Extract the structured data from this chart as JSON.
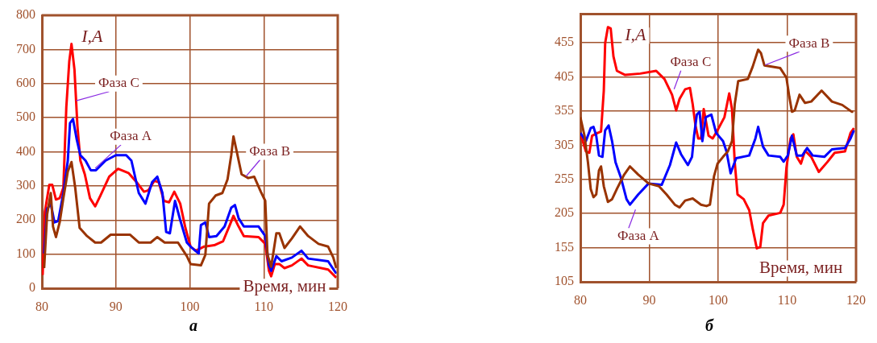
{
  "chart_data": [
    {
      "type": "line",
      "ylabel": "I,A",
      "xlabel": "Время, мин",
      "annotations": [
        "а"
      ],
      "xlim": [
        80,
        120
      ],
      "xticks": [
        80,
        90,
        100,
        110,
        120
      ],
      "ylim": [
        0,
        800
      ],
      "yticks": [
        0,
        100,
        200,
        300,
        400,
        500,
        600,
        700,
        800
      ],
      "grid": true,
      "marker": "none",
      "line_style": "solid",
      "series": [
        {
          "name": "Фаза B",
          "color": "#993300",
          "x": [
            80.3,
            80.7,
            81.2,
            81.5,
            81.9,
            82.4,
            82.9,
            83.5,
            84.0,
            84.5,
            85.1,
            86.1,
            87.2,
            88.0,
            89.3,
            91.9,
            93.1,
            94.7,
            95.6,
            96.6,
            98.4,
            99.6,
            100.1,
            101.5,
            102.1,
            102.6,
            103.5,
            104.4,
            105.1,
            105.6,
            105.9,
            106.3,
            107.0,
            107.9,
            108.7,
            109.6,
            110.2,
            110.5,
            111.0,
            111.7,
            112.1,
            112.8,
            113.8,
            114.9,
            116.0,
            117.4,
            118.7,
            119.4,
            119.8
          ],
          "values": [
            59,
            216,
            279,
            181,
            150,
            193,
            264,
            342,
            370,
            295,
            177,
            153,
            134,
            134,
            157,
            157,
            134,
            134,
            150,
            134,
            134,
            94,
            71,
            67,
            98,
            248,
            272,
            279,
            319,
            390,
            445,
            405,
            334,
            323,
            327,
            283,
            256,
            98,
            63,
            161,
            161,
            118,
            146,
            181,
            153,
            130,
            122,
            90,
            59
          ]
        },
        {
          "name": "Фаза A",
          "color": "#0000ff",
          "x": [
            80.3,
            80.7,
            81.2,
            81.7,
            82.2,
            82.9,
            83.5,
            83.8,
            84.2,
            84.7,
            85.2,
            85.9,
            86.6,
            87.3,
            88.6,
            90.0,
            91.4,
            92.1,
            93.1,
            94.0,
            94.9,
            95.6,
            96.3,
            96.8,
            97.3,
            98.0,
            98.7,
            99.6,
            100.1,
            101.2,
            101.5,
            102.1,
            102.6,
            103.6,
            104.7,
            105.6,
            106.1,
            106.6,
            107.3,
            109.3,
            110.2,
            110.7,
            111.0,
            111.7,
            112.4,
            113.8,
            115.1,
            116.0,
            118.7,
            119.8
          ],
          "values": [
            102,
            232,
            248,
            193,
            197,
            279,
            374,
            484,
            496,
            437,
            390,
            374,
            346,
            346,
            374,
            390,
            390,
            374,
            279,
            248,
            311,
            327,
            279,
            165,
            161,
            256,
            200,
            134,
            122,
            102,
            185,
            193,
            150,
            153,
            181,
            236,
            244,
            205,
            181,
            181,
            153,
            67,
            51,
            94,
            79,
            90,
            110,
            87,
            79,
            43
          ]
        },
        {
          "name": "Фаза C",
          "color": "#ff0000",
          "x": [
            80.1,
            80.4,
            81.0,
            81.4,
            81.9,
            82.4,
            82.9,
            83.3,
            83.7,
            84.0,
            84.4,
            84.8,
            85.2,
            85.8,
            86.5,
            87.2,
            87.9,
            89.1,
            90.3,
            91.7,
            92.8,
            93.8,
            94.4,
            95.2,
            95.8,
            96.5,
            97.2,
            97.9,
            98.7,
            99.4,
            100.1,
            100.8,
            101.9,
            103.3,
            104.5,
            105.4,
            105.9,
            106.5,
            107.3,
            109.3,
            110.2,
            110.7,
            111.0,
            111.5,
            112.1,
            112.8,
            113.8,
            115.1,
            116.0,
            118.7,
            119.8
          ],
          "values": [
            39,
            224,
            303,
            303,
            260,
            264,
            295,
            531,
            665,
            716,
            641,
            476,
            374,
            334,
            264,
            240,
            271,
            327,
            350,
            338,
            311,
            283,
            287,
            315,
            311,
            256,
            252,
            283,
            248,
            177,
            122,
            110,
            122,
            126,
            138,
            185,
            212,
            185,
            153,
            150,
            130,
            51,
            35,
            71,
            71,
            59,
            67,
            87,
            67,
            55,
            31
          ]
        }
      ]
    },
    {
      "type": "line",
      "ylabel": "I,A",
      "xlabel": "Время, мин",
      "annotations": [
        "б"
      ],
      "xlim": [
        80,
        120
      ],
      "xticks": [
        80,
        90,
        100,
        110,
        120
      ],
      "ylim": [
        105,
        497
      ],
      "yticks": [
        105,
        155,
        205,
        255,
        305,
        355,
        405,
        455
      ],
      "grid": true,
      "marker": "none",
      "line_style": "solid",
      "series": [
        {
          "name": "Фаза B",
          "color": "#993300",
          "x": [
            80,
            80.6,
            81.1,
            81.5,
            81.9,
            82.3,
            82.7,
            83.0,
            83.4,
            84.0,
            84.6,
            85.3,
            86.3,
            87.2,
            88.4,
            89.9,
            91.4,
            92.5,
            93.7,
            94.4,
            95.2,
            96.3,
            97.5,
            98.3,
            98.8,
            99.4,
            99.9,
            100.7,
            101.4,
            102.0,
            102.4,
            102.9,
            104.3,
            105.0,
            105.8,
            106.2,
            106.7,
            109.0,
            109.9,
            110.3,
            110.7,
            111.1,
            111.8,
            112.6,
            113.5,
            115.0,
            116.5,
            118.0,
            119.4,
            119.6
          ],
          "values": [
            346,
            319,
            280,
            241,
            229,
            233,
            268,
            274,
            245,
            222,
            226,
            241,
            261,
            274,
            262,
            249,
            245,
            233,
            218,
            214,
            224,
            227,
            218,
            216,
            218,
            260,
            278,
            288,
            296,
            311,
            365,
            399,
            402,
            420,
            445,
            440,
            422,
            418,
            404,
            377,
            354,
            356,
            379,
            367,
            369,
            385,
            369,
            364,
            354,
            354
          ]
        },
        {
          "name": "Фаза A",
          "color": "#0000ff",
          "x": [
            80,
            80.8,
            81.5,
            81.9,
            82.3,
            82.7,
            83.2,
            83.6,
            84.1,
            84.6,
            85.1,
            85.9,
            86.7,
            87.2,
            88.4,
            89.9,
            91.8,
            93.0,
            93.9,
            94.6,
            95.6,
            96.2,
            96.5,
            96.9,
            97.3,
            97.7,
            98.2,
            99.0,
            99.7,
            100.7,
            101.2,
            101.8,
            102.6,
            104.5,
            105.4,
            105.8,
            106.5,
            107.3,
            109.0,
            109.5,
            110.1,
            110.7,
            111.4,
            112.2,
            112.9,
            113.7,
            115.4,
            116.5,
            118.4,
            119.2,
            119.7
          ],
          "values": [
            323,
            311,
            330,
            332,
            319,
            290,
            288,
            327,
            334,
            311,
            280,
            257,
            226,
            218,
            233,
            249,
            247,
            276,
            309,
            292,
            276,
            288,
            319,
            350,
            354,
            311,
            346,
            350,
            323,
            311,
            296,
            264,
            286,
            290,
            315,
            332,
            303,
            290,
            288,
            281,
            290,
            319,
            290,
            290,
            301,
            290,
            288,
            299,
            301,
            315,
            327
          ]
        },
        {
          "name": "Фаза C",
          "color": "#ff0000",
          "x": [
            80,
            80.8,
            81.3,
            81.7,
            82.5,
            83.0,
            83.4,
            83.6,
            84.0,
            84.4,
            84.8,
            85.3,
            86.5,
            88.7,
            91.0,
            92.2,
            93.3,
            93.9,
            94.4,
            95.2,
            95.9,
            96.3,
            96.7,
            97.1,
            97.5,
            97.9,
            98.6,
            99.2,
            99.9,
            100.9,
            101.6,
            102.0,
            102.4,
            102.8,
            103.7,
            104.5,
            105.0,
            105.6,
            106.1,
            106.5,
            107.3,
            109.0,
            109.5,
            109.9,
            110.5,
            110.9,
            111.4,
            112.0,
            112.6,
            113.5,
            114.6,
            115.8,
            116.9,
            118.4,
            119.2,
            119.7
          ],
          "values": [
            323,
            296,
            294,
            319,
            323,
            325,
            385,
            455,
            478,
            476,
            435,
            414,
            408,
            410,
            414,
            402,
            379,
            356,
            373,
            387,
            389,
            365,
            334,
            315,
            315,
            358,
            319,
            315,
            327,
            346,
            381,
            358,
            280,
            233,
            226,
            210,
            183,
            154,
            156,
            191,
            202,
            206,
            218,
            272,
            315,
            321,
            288,
            278,
            297,
            288,
            266,
            280,
            294,
            296,
            323,
            330
          ]
        }
      ]
    }
  ]
}
